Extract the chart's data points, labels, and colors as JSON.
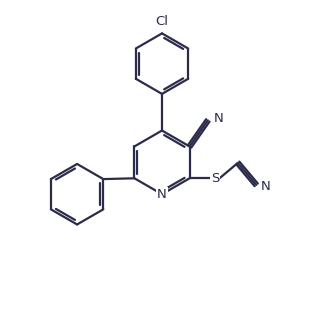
{
  "background_color": "#ffffff",
  "line_color": "#2b2b4b",
  "text_color": "#2b2b4b",
  "bond_lw": 1.6,
  "figsize": [
    3.24,
    3.12
  ],
  "dpi": 100,
  "xlim": [
    0,
    10
  ],
  "ylim": [
    0,
    9.6
  ]
}
